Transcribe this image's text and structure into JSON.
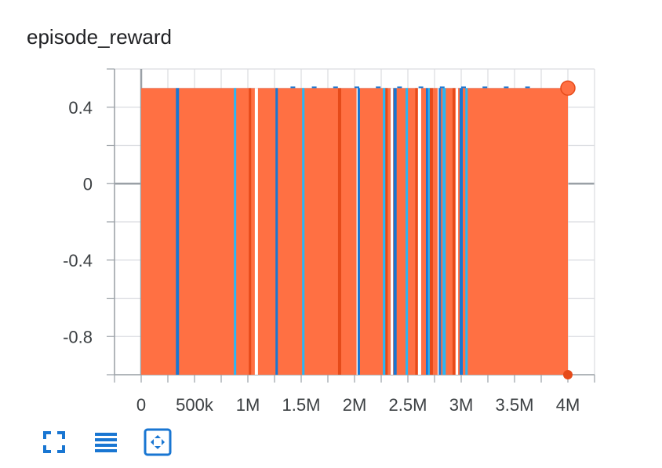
{
  "card": {
    "title": "episode_reward"
  },
  "toolbar": {
    "buttons": [
      {
        "name": "fullscreen-icon"
      },
      {
        "name": "toggle-log-scale-icon"
      },
      {
        "name": "fit-domain-icon"
      }
    ]
  },
  "colors": {
    "orange_series": "#ff7043",
    "dark_orange": "#e64a19",
    "blue_series": "#1976d2",
    "light_blue": "#29b6f6",
    "grid": "#dadce0",
    "axis": "#9aa0a6",
    "zero_line": "#9aa0a6"
  },
  "chart_data": {
    "type": "area",
    "title": "episode_reward",
    "xlabel": "",
    "ylabel": "",
    "xlim": [
      -250000,
      4250000
    ],
    "ylim": [
      -1.0,
      0.6
    ],
    "x_ticks": [
      0,
      500000,
      1000000,
      1500000,
      2000000,
      2500000,
      3000000,
      3500000,
      4000000
    ],
    "x_tick_labels": [
      "0",
      "500k",
      "1M",
      "1.5M",
      "2M",
      "2.5M",
      "3M",
      "3.5M",
      "4M"
    ],
    "y_ticks": [
      0.4,
      0,
      -0.4,
      -0.8
    ],
    "y_tick_labels": [
      "0.4",
      "0",
      "-0.4",
      "-0.8"
    ],
    "grid": true,
    "legend": "none",
    "series": [
      {
        "values_min": -1.0,
        "values_max": 0.5,
        "x_range": [
          0,
          4000000
        ],
        "end_value": 0.5
      },
      {
        "values_min": -1.0,
        "values_max": 0.5,
        "x_range": [
          0,
          4000000
        ],
        "end_value": -1.0
      }
    ],
    "spikes_x": [
      340000,
      880000,
      1020000,
      1080000,
      1270000,
      1520000,
      1860000,
      2030000,
      2040000,
      2280000,
      2300000,
      2350000,
      2380000,
      2490000,
      2580000,
      2610000,
      2680000,
      2700000,
      2720000,
      2790000,
      2800000,
      2840000,
      2930000,
      2960000,
      3000000,
      3050000
    ]
  }
}
